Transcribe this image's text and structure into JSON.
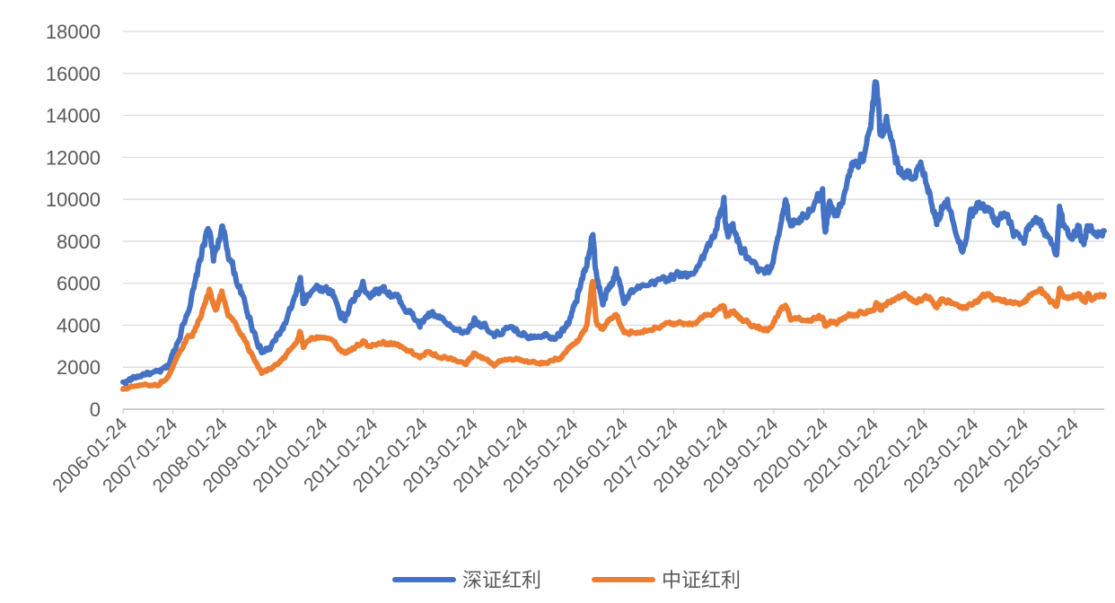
{
  "chart_data": {
    "type": "line",
    "title": "",
    "xlabel": "",
    "ylabel": "",
    "ylim": [
      0,
      18000
    ],
    "yticks": [
      0,
      2000,
      4000,
      6000,
      8000,
      10000,
      12000,
      14000,
      16000,
      18000
    ],
    "xlim": [
      "2006-01-24",
      "2025-08-31"
    ],
    "xticks": [
      "2006-01-24",
      "2007-01-24",
      "2008-01-24",
      "2009-01-24",
      "2010-01-24",
      "2011-01-24",
      "2012-01-24",
      "2013-01-24",
      "2014-01-24",
      "2015-01-24",
      "2016-01-24",
      "2017-01-24",
      "2018-01-24",
      "2019-01-24",
      "2020-01-24",
      "2021-01-24",
      "2022-01-24",
      "2023-01-24",
      "2024-01-24",
      "2025-01-24"
    ],
    "grid": "horizontal",
    "legend": "bottom",
    "series": [
      {
        "name": "深证红利",
        "color": "#4472C4",
        "points": [
          [
            "2006-01-24",
            1250
          ],
          [
            "2006-04-01",
            1450
          ],
          [
            "2006-07-01",
            1700
          ],
          [
            "2006-10-01",
            1700
          ],
          [
            "2006-12-15",
            2000
          ],
          [
            "2007-02-15",
            3000
          ],
          [
            "2007-05-01",
            4500
          ],
          [
            "2007-07-01",
            5800
          ],
          [
            "2007-09-01",
            7800
          ],
          [
            "2007-10-10",
            8600
          ],
          [
            "2007-11-15",
            7200
          ],
          [
            "2008-01-15",
            8600
          ],
          [
            "2008-03-01",
            7500
          ],
          [
            "2008-05-01",
            6200
          ],
          [
            "2008-07-01",
            5000
          ],
          [
            "2008-09-01",
            3800
          ],
          [
            "2008-11-01",
            2700
          ],
          [
            "2009-01-01",
            2900
          ],
          [
            "2009-03-01",
            3500
          ],
          [
            "2009-05-01",
            4200
          ],
          [
            "2009-07-15",
            5500
          ],
          [
            "2009-08-10",
            6200
          ],
          [
            "2009-09-01",
            5000
          ],
          [
            "2009-11-01",
            5800
          ],
          [
            "2010-01-01",
            5800
          ],
          [
            "2010-04-01",
            5600
          ],
          [
            "2010-06-01",
            4500
          ],
          [
            "2010-07-01",
            4300
          ],
          [
            "2010-09-01",
            5200
          ],
          [
            "2010-11-10",
            5900
          ],
          [
            "2011-01-01",
            5500
          ],
          [
            "2011-04-01",
            5800
          ],
          [
            "2011-06-01",
            5500
          ],
          [
            "2011-08-01",
            5200
          ],
          [
            "2011-10-01",
            4700
          ],
          [
            "2011-12-31",
            4000
          ],
          [
            "2012-03-01",
            4500
          ],
          [
            "2012-05-01",
            4400
          ],
          [
            "2012-08-01",
            3900
          ],
          [
            "2012-12-01",
            3600
          ],
          [
            "2013-02-01",
            4300
          ],
          [
            "2013-04-01",
            4000
          ],
          [
            "2013-06-25",
            3400
          ],
          [
            "2013-09-01",
            3800
          ],
          [
            "2013-12-01",
            3700
          ],
          [
            "2014-03-01",
            3500
          ],
          [
            "2014-06-01",
            3600
          ],
          [
            "2014-09-01",
            3500
          ],
          [
            "2014-11-01",
            3700
          ],
          [
            "2014-12-31",
            4300
          ],
          [
            "2015-03-01",
            5500
          ],
          [
            "2015-05-01",
            7000
          ],
          [
            "2015-06-12",
            8400
          ],
          [
            "2015-07-08",
            6500
          ],
          [
            "2015-08-26",
            5000
          ],
          [
            "2015-10-01",
            5600
          ],
          [
            "2015-12-01",
            6500
          ],
          [
            "2016-01-28",
            5300
          ],
          [
            "2016-04-01",
            5600
          ],
          [
            "2016-08-01",
            5800
          ],
          [
            "2016-11-01",
            6200
          ],
          [
            "2017-02-01",
            6400
          ],
          [
            "2017-05-01",
            6300
          ],
          [
            "2017-08-01",
            7000
          ],
          [
            "2017-11-01",
            8000
          ],
          [
            "2018-01-24",
            10000
          ],
          [
            "2018-02-10",
            8400
          ],
          [
            "2018-04-01",
            8600
          ],
          [
            "2018-06-01",
            7600
          ],
          [
            "2018-08-01",
            7000
          ],
          [
            "2018-10-20",
            6500
          ],
          [
            "2019-01-01",
            6500
          ],
          [
            "2019-03-01",
            8500
          ],
          [
            "2019-04-20",
            9800
          ],
          [
            "2019-06-01",
            8800
          ],
          [
            "2019-09-01",
            9300
          ],
          [
            "2019-12-01",
            9800
          ],
          [
            "2020-01-15",
            10300
          ],
          [
            "2020-02-03",
            8500
          ],
          [
            "2020-03-01",
            9800
          ],
          [
            "2020-05-01",
            9200
          ],
          [
            "2020-07-20",
            11000
          ],
          [
            "2020-09-01",
            11800
          ],
          [
            "2020-11-01",
            12000
          ],
          [
            "2020-12-31",
            13500
          ],
          [
            "2021-02-10",
            15600
          ],
          [
            "2021-03-10",
            13200
          ],
          [
            "2021-05-01",
            13800
          ],
          [
            "2021-07-01",
            12000
          ],
          [
            "2021-09-01",
            11000
          ],
          [
            "2021-11-01",
            11300
          ],
          [
            "2021-12-31",
            11500
          ],
          [
            "2022-03-01",
            10500
          ],
          [
            "2022-04-27",
            9000
          ],
          [
            "2022-06-01",
            9600
          ],
          [
            "2022-08-01",
            9800
          ],
          [
            "2022-10-31",
            7500
          ],
          [
            "2022-12-31",
            9300
          ],
          [
            "2023-03-01",
            9700
          ],
          [
            "2023-05-01",
            9500
          ],
          [
            "2023-07-01",
            9000
          ],
          [
            "2023-09-01",
            9300
          ],
          [
            "2023-11-01",
            8500
          ],
          [
            "2024-01-24",
            7800
          ],
          [
            "2024-03-01",
            8700
          ],
          [
            "2024-05-20",
            9000
          ],
          [
            "2024-07-01",
            8300
          ],
          [
            "2024-09-18",
            7200
          ],
          [
            "2024-10-08",
            9600
          ],
          [
            "2024-11-01",
            8900
          ],
          [
            "2025-01-10",
            8300
          ],
          [
            "2025-03-01",
            8600
          ],
          [
            "2025-04-08",
            8000
          ],
          [
            "2025-05-01",
            8700
          ],
          [
            "2025-06-20",
            8500
          ],
          [
            "2025-08-31",
            8500
          ]
        ]
      },
      {
        "name": "中证红利",
        "color": "#ED7D31",
        "points": [
          [
            "2006-01-24",
            950
          ],
          [
            "2006-04-01",
            1050
          ],
          [
            "2006-07-01",
            1150
          ],
          [
            "2006-10-01",
            1150
          ],
          [
            "2006-12-15",
            1500
          ],
          [
            "2007-02-15",
            2300
          ],
          [
            "2007-05-01",
            3300
          ],
          [
            "2007-07-01",
            3700
          ],
          [
            "2007-09-01",
            4800
          ],
          [
            "2007-10-16",
            5600
          ],
          [
            "2007-11-30",
            4600
          ],
          [
            "2008-01-15",
            5600
          ],
          [
            "2008-03-01",
            4500
          ],
          [
            "2008-05-01",
            4000
          ],
          [
            "2008-07-01",
            3300
          ],
          [
            "2008-09-01",
            2400
          ],
          [
            "2008-11-01",
            1700
          ],
          [
            "2009-01-01",
            1900
          ],
          [
            "2009-03-01",
            2200
          ],
          [
            "2009-05-01",
            2600
          ],
          [
            "2009-07-15",
            3200
          ],
          [
            "2009-08-10",
            3700
          ],
          [
            "2009-09-01",
            3000
          ],
          [
            "2009-11-01",
            3400
          ],
          [
            "2010-01-01",
            3400
          ],
          [
            "2010-04-01",
            3300
          ],
          [
            "2010-06-01",
            2800
          ],
          [
            "2010-07-01",
            2700
          ],
          [
            "2010-09-01",
            2900
          ],
          [
            "2010-11-10",
            3200
          ],
          [
            "2011-01-01",
            3000
          ],
          [
            "2011-04-01",
            3200
          ],
          [
            "2011-06-01",
            3100
          ],
          [
            "2011-08-01",
            3000
          ],
          [
            "2011-10-01",
            2800
          ],
          [
            "2011-12-31",
            2500
          ],
          [
            "2012-03-01",
            2700
          ],
          [
            "2012-05-01",
            2600
          ],
          [
            "2012-08-01",
            2400
          ],
          [
            "2012-12-01",
            2200
          ],
          [
            "2013-02-01",
            2700
          ],
          [
            "2013-04-01",
            2500
          ],
          [
            "2013-06-25",
            2100
          ],
          [
            "2013-09-01",
            2400
          ],
          [
            "2013-12-01",
            2400
          ],
          [
            "2014-03-01",
            2200
          ],
          [
            "2014-06-01",
            2200
          ],
          [
            "2014-09-01",
            2300
          ],
          [
            "2014-11-01",
            2500
          ],
          [
            "2014-12-31",
            3000
          ],
          [
            "2015-03-01",
            3300
          ],
          [
            "2015-05-01",
            4000
          ],
          [
            "2015-06-12",
            6200
          ],
          [
            "2015-07-08",
            4200
          ],
          [
            "2015-08-26",
            3800
          ],
          [
            "2015-10-01",
            4200
          ],
          [
            "2015-12-01",
            4600
          ],
          [
            "2016-01-28",
            3600
          ],
          [
            "2016-04-01",
            3700
          ],
          [
            "2016-08-01",
            3800
          ],
          [
            "2016-11-01",
            4000
          ],
          [
            "2017-02-01",
            4100
          ],
          [
            "2017-05-01",
            4000
          ],
          [
            "2017-08-01",
            4300
          ],
          [
            "2017-11-01",
            4600
          ],
          [
            "2018-01-24",
            5000
          ],
          [
            "2018-02-10",
            4500
          ],
          [
            "2018-04-01",
            4600
          ],
          [
            "2018-06-01",
            4300
          ],
          [
            "2018-08-01",
            4100
          ],
          [
            "2018-10-20",
            3800
          ],
          [
            "2019-01-01",
            3800
          ],
          [
            "2019-03-01",
            4600
          ],
          [
            "2019-04-20",
            4900
          ],
          [
            "2019-06-01",
            4300
          ],
          [
            "2019-09-01",
            4300
          ],
          [
            "2019-12-01",
            4300
          ],
          [
            "2020-01-15",
            4400
          ],
          [
            "2020-02-03",
            4000
          ],
          [
            "2020-03-01",
            4200
          ],
          [
            "2020-05-01",
            4100
          ],
          [
            "2020-07-20",
            4500
          ],
          [
            "2020-09-01",
            4500
          ],
          [
            "2020-11-01",
            4600
          ],
          [
            "2020-12-31",
            4700
          ],
          [
            "2021-02-10",
            5000
          ],
          [
            "2021-03-10",
            4800
          ],
          [
            "2021-05-01",
            5000
          ],
          [
            "2021-07-01",
            5300
          ],
          [
            "2021-09-01",
            5500
          ],
          [
            "2021-11-01",
            5100
          ],
          [
            "2021-12-31",
            5200
          ],
          [
            "2022-03-01",
            5300
          ],
          [
            "2022-04-27",
            4900
          ],
          [
            "2022-06-01",
            5200
          ],
          [
            "2022-08-01",
            5100
          ],
          [
            "2022-10-31",
            4800
          ],
          [
            "2022-12-31",
            5000
          ],
          [
            "2023-03-01",
            5200
          ],
          [
            "2023-05-01",
            5500
          ],
          [
            "2023-07-01",
            5200
          ],
          [
            "2023-09-01",
            5200
          ],
          [
            "2023-11-01",
            5000
          ],
          [
            "2024-01-24",
            5100
          ],
          [
            "2024-03-01",
            5400
          ],
          [
            "2024-05-20",
            5700
          ],
          [
            "2024-07-01",
            5400
          ],
          [
            "2024-09-18",
            4900
          ],
          [
            "2024-10-08",
            5600
          ],
          [
            "2024-11-01",
            5400
          ],
          [
            "2025-01-10",
            5300
          ],
          [
            "2025-03-01",
            5400
          ],
          [
            "2025-04-08",
            5100
          ],
          [
            "2025-05-01",
            5400
          ],
          [
            "2025-06-20",
            5300
          ],
          [
            "2025-08-31",
            5450
          ]
        ]
      }
    ]
  }
}
